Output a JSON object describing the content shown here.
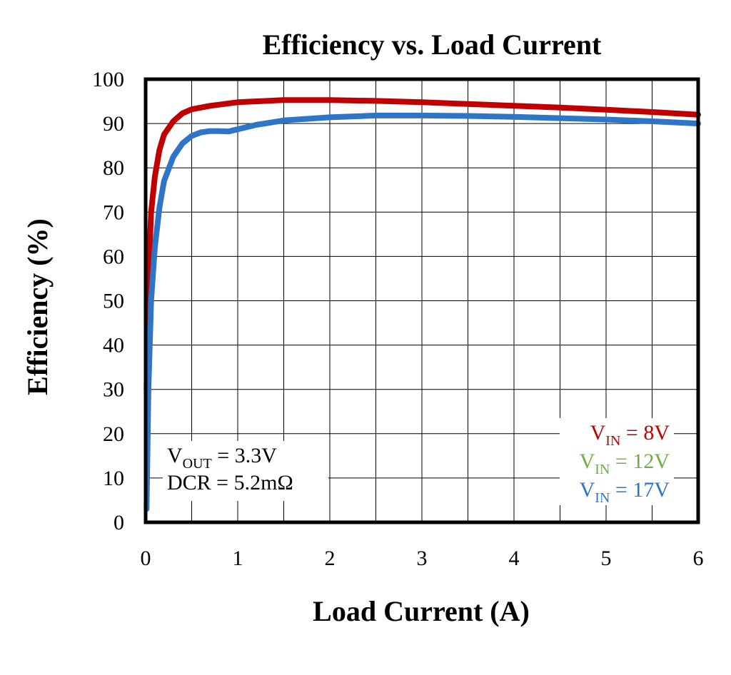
{
  "chart_data": {
    "type": "line",
    "title": "Efficiency vs. Load Current",
    "xlabel": "Load Current (A)",
    "ylabel": "Efficiency (%)",
    "xlim": [
      0,
      6
    ],
    "ylim": [
      0,
      100
    ],
    "xticks": [
      "0",
      "1",
      "2",
      "3",
      "4",
      "5",
      "6"
    ],
    "yticks": [
      "0",
      "10",
      "20",
      "30",
      "40",
      "50",
      "60",
      "70",
      "80",
      "90",
      "100"
    ],
    "grid": true,
    "legend_placement": "bottom-right",
    "annotations": [
      {
        "main": "V",
        "sub": "OUT",
        "rest": " = 3.3V"
      },
      {
        "main": "DCR = 5.2mΩ",
        "sub": "",
        "rest": ""
      }
    ],
    "series": [
      {
        "name_main": "V",
        "name_sub": "IN",
        "name_rest": " = 8V",
        "color": "#c00000",
        "x": [
          0.01,
          0.03,
          0.06,
          0.1,
          0.15,
          0.2,
          0.3,
          0.4,
          0.5,
          0.7,
          1.0,
          1.5,
          2.0,
          2.5,
          3.0,
          3.5,
          4.0,
          4.5,
          5.0,
          5.5,
          6.0
        ],
        "y": [
          30,
          55,
          70,
          78,
          84,
          87.5,
          90.5,
          92.3,
          93.2,
          94.0,
          94.8,
          95.3,
          95.3,
          95.1,
          94.8,
          94.4,
          94.0,
          93.6,
          93.1,
          92.6,
          92.0
        ]
      },
      {
        "name_main": "V",
        "name_sub": "IN",
        "name_rest": " = 12V",
        "color": "#70ad47",
        "x": [],
        "y": []
      },
      {
        "name_main": "V",
        "name_sub": "IN",
        "name_rest": " = 17V",
        "color": "#2e75c8",
        "x": [
          0.01,
          0.03,
          0.06,
          0.1,
          0.15,
          0.2,
          0.3,
          0.4,
          0.5,
          0.6,
          0.7,
          0.8,
          0.9,
          1.0,
          1.2,
          1.5,
          2.0,
          2.5,
          3.0,
          3.5,
          4.0,
          4.5,
          5.0,
          5.5,
          6.0
        ],
        "y": [
          3,
          30,
          50,
          62,
          71,
          77,
          82.5,
          85.5,
          87.2,
          88.0,
          88.3,
          88.3,
          88.2,
          88.7,
          89.7,
          90.7,
          91.4,
          91.8,
          91.8,
          91.7,
          91.5,
          91.2,
          90.9,
          90.5,
          90.0
        ]
      }
    ]
  }
}
